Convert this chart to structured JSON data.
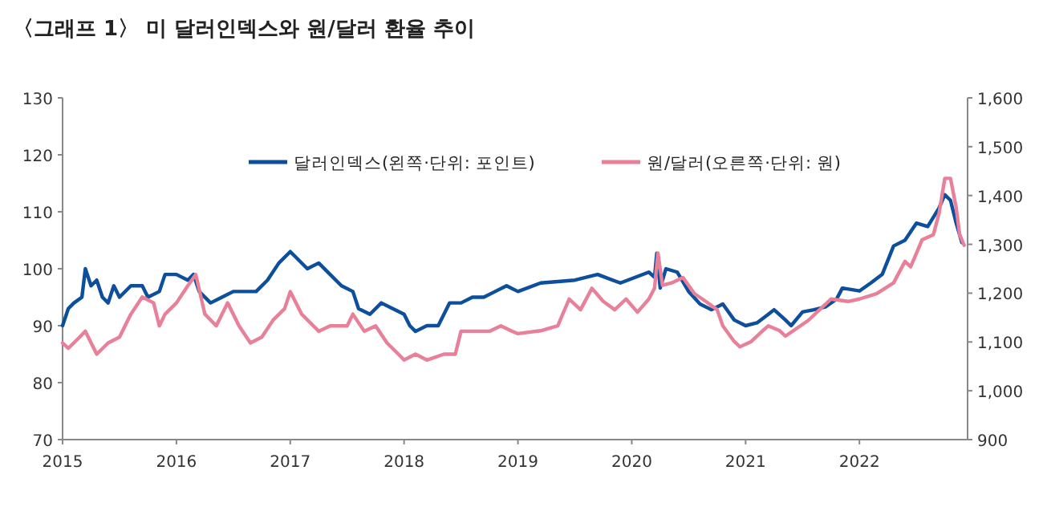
{
  "chart_data": {
    "type": "line",
    "title": "〈그래프 1〉 미 달러인덱스와 원/달러 환율 추이",
    "legend": "top",
    "xlim": [
      2015,
      2022.95
    ],
    "xticks": [
      2015,
      2016,
      2017,
      2018,
      2019,
      2020,
      2021,
      2022
    ],
    "ylim": [
      70,
      130
    ],
    "yticks": [
      70,
      80,
      90,
      100,
      110,
      120,
      130
    ],
    "y2lim": [
      900,
      1600
    ],
    "y2ticks": [
      {
        "value": 900,
        "label": "900"
      },
      {
        "value": 1000,
        "label": "1,000"
      },
      {
        "value": 1100,
        "label": "1,100"
      },
      {
        "value": 1200,
        "label": "1,200"
      },
      {
        "value": 1300,
        "label": "1,300"
      },
      {
        "value": 1400,
        "label": "1,400"
      },
      {
        "value": 1500,
        "label": "1,500"
      },
      {
        "value": 1600,
        "label": "1,600"
      }
    ],
    "series": [
      {
        "name": "달러인덱스(왼쪽·단위: 포인트)",
        "color": "#0d4f9c",
        "x": [
          2015,
          2015.05,
          2015.1,
          2015.17,
          2015.2,
          2015.25,
          2015.3,
          2015.35,
          2015.4,
          2015.45,
          2015.5,
          2015.6,
          2015.7,
          2015.75,
          2015.85,
          2015.9,
          2016,
          2016.1,
          2016.15,
          2016.2,
          2016.3,
          2016.4,
          2016.5,
          2016.6,
          2016.7,
          2016.8,
          2016.9,
          2017,
          2017.05,
          2017.15,
          2017.25,
          2017.35,
          2017.45,
          2017.55,
          2017.6,
          2017.7,
          2017.8,
          2017.9,
          2018,
          2018.05,
          2018.1,
          2018.2,
          2018.3,
          2018.4,
          2018.5,
          2018.6,
          2018.7,
          2018.8,
          2018.9,
          2019,
          2019.2,
          2019.5,
          2019.7,
          2019.9,
          2020.15,
          2020.2,
          2020.22,
          2020.25,
          2020.3,
          2020.4,
          2020.5,
          2020.6,
          2020.7,
          2020.8,
          2020.9,
          2021,
          2021.1,
          2021.2,
          2021.25,
          2021.35,
          2021.4,
          2021.5,
          2021.6,
          2021.7,
          2021.8,
          2021.85,
          2022,
          2022.1,
          2022.2,
          2022.3,
          2022.4,
          2022.5,
          2022.6,
          2022.7,
          2022.75,
          2022.8,
          2022.85,
          2022.9
        ],
        "values": [
          90,
          93,
          94,
          95,
          100,
          97,
          98,
          95,
          94,
          97,
          95,
          97,
          97,
          95,
          96,
          99,
          99,
          98,
          99,
          96,
          94,
          95,
          96,
          96,
          96,
          98,
          101,
          103,
          102,
          100,
          101,
          99,
          97,
          96,
          93,
          92,
          94,
          93,
          92,
          90,
          89,
          90,
          90,
          94,
          94,
          95,
          95,
          96,
          97,
          96,
          97.5,
          98,
          99,
          97.5,
          99.4,
          98.5,
          102.7,
          96.6,
          100,
          99.4,
          96,
          93.8,
          92.8,
          93.8,
          91,
          90,
          90.5,
          92,
          92.8,
          91,
          90,
          92.4,
          92.8,
          93.3,
          94.7,
          96.6,
          96.1,
          97.5,
          99,
          104,
          105,
          108,
          107.4,
          110.7,
          113,
          112,
          108,
          104.6
        ]
      },
      {
        "name": "원/달러(오른쪽·단위: 원)",
        "color": "#e8809a",
        "axis": "y2",
        "x": [
          2015,
          2015.05,
          2015.15,
          2015.2,
          2015.3,
          2015.4,
          2015.5,
          2015.6,
          2015.7,
          2015.8,
          2015.85,
          2015.9,
          2016,
          2016.1,
          2016.17,
          2016.25,
          2016.35,
          2016.45,
          2016.55,
          2016.65,
          2016.75,
          2016.85,
          2016.95,
          2017,
          2017.1,
          2017.25,
          2017.35,
          2017.5,
          2017.55,
          2017.65,
          2017.75,
          2017.85,
          2017.95,
          2018,
          2018.1,
          2018.2,
          2018.35,
          2018.45,
          2018.5,
          2018.6,
          2018.75,
          2018.85,
          2018.95,
          2019,
          2019.2,
          2019.35,
          2019.45,
          2019.55,
          2019.65,
          2019.75,
          2019.85,
          2019.95,
          2020.05,
          2020.15,
          2020.2,
          2020.23,
          2020.27,
          2020.35,
          2020.45,
          2020.55,
          2020.65,
          2020.75,
          2020.8,
          2020.9,
          2020.95,
          2021.05,
          2021.15,
          2021.2,
          2021.3,
          2021.35,
          2021.45,
          2021.55,
          2021.65,
          2021.75,
          2021.9,
          2022,
          2022.15,
          2022.3,
          2022.4,
          2022.45,
          2022.55,
          2022.65,
          2022.7,
          2022.75,
          2022.8,
          2022.85,
          2022.88,
          2022.92
        ],
        "values": [
          1098,
          1087,
          1110,
          1122,
          1075,
          1098,
          1110,
          1157,
          1192,
          1180,
          1133,
          1157,
          1180,
          1215,
          1238,
          1157,
          1133,
          1180,
          1133,
          1098,
          1110,
          1145,
          1168,
          1203,
          1157,
          1122,
          1133,
          1133,
          1157,
          1122,
          1133,
          1098,
          1075,
          1063,
          1075,
          1063,
          1075,
          1075,
          1122,
          1122,
          1122,
          1133,
          1122,
          1117,
          1123,
          1133,
          1188,
          1166,
          1210,
          1183,
          1166,
          1188,
          1161,
          1188,
          1210,
          1282,
          1216,
          1221,
          1232,
          1199,
          1183,
          1166,
          1133,
          1101,
          1090,
          1101,
          1123,
          1133,
          1123,
          1112,
          1128,
          1144,
          1166,
          1188,
          1183,
          1188,
          1199,
          1221,
          1265,
          1254,
          1309,
          1320,
          1364,
          1435,
          1435,
          1375,
          1320,
          1298
        ]
      }
    ]
  }
}
